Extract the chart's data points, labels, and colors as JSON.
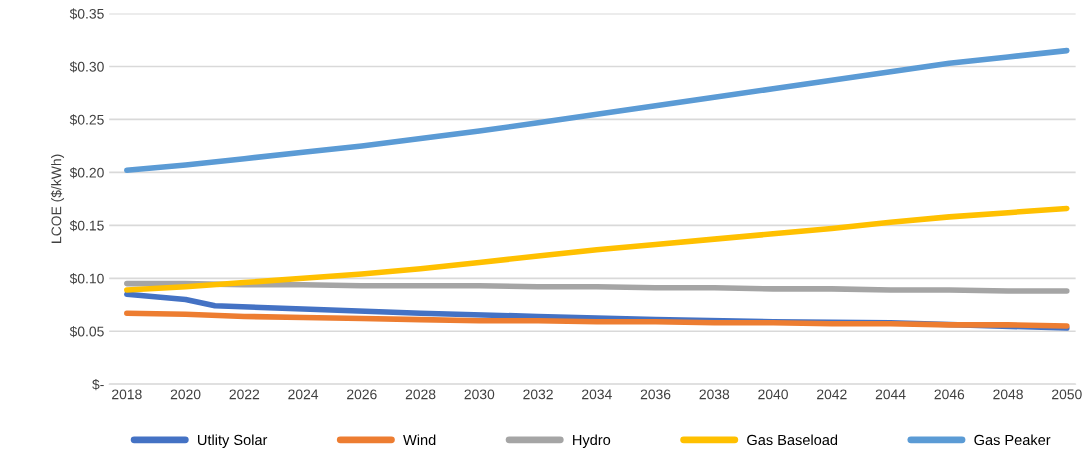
{
  "chart_data": {
    "type": "line",
    "ylabel": "LCOE ($/kWh)",
    "x": [
      2018,
      2020,
      2022,
      2024,
      2026,
      2028,
      2030,
      2032,
      2034,
      2036,
      2038,
      2040,
      2042,
      2044,
      2046,
      2048,
      2050
    ],
    "series": [
      {
        "name": "Utlity Solar",
        "color": "#4472c4",
        "x": [
          2018,
          2020,
          2021,
          2024,
          2028,
          2032,
          2036,
          2040,
          2044,
          2050
        ],
        "values": [
          0.085,
          0.08,
          0.074,
          0.071,
          0.067,
          0.064,
          0.061,
          0.059,
          0.058,
          0.053
        ]
      },
      {
        "name": "Wind",
        "color": "#ed7d31",
        "values": [
          0.067,
          0.066,
          0.064,
          0.063,
          0.062,
          0.061,
          0.06,
          0.06,
          0.059,
          0.059,
          0.058,
          0.058,
          0.057,
          0.057,
          0.056,
          0.056,
          0.055
        ]
      },
      {
        "name": "Hydro",
        "color": "#a5a5a5",
        "values": [
          0.095,
          0.095,
          0.094,
          0.094,
          0.093,
          0.093,
          0.093,
          0.092,
          0.092,
          0.091,
          0.091,
          0.09,
          0.09,
          0.089,
          0.089,
          0.088,
          0.088
        ]
      },
      {
        "name": "Gas Baseload",
        "color": "#ffc000",
        "values": [
          0.089,
          0.092,
          0.096,
          0.1,
          0.104,
          0.109,
          0.115,
          0.121,
          0.127,
          0.132,
          0.137,
          0.142,
          0.147,
          0.153,
          0.158,
          0.162,
          0.166
        ]
      },
      {
        "name": "Gas Peaker",
        "color": "#5b9bd5",
        "values": [
          0.202,
          0.207,
          0.213,
          0.219,
          0.225,
          0.232,
          0.239,
          0.247,
          0.255,
          0.263,
          0.271,
          0.279,
          0.287,
          0.295,
          0.303,
          0.309,
          0.315
        ]
      }
    ],
    "xlim": [
      2017.4,
      2050.3
    ],
    "xticks": [
      2018,
      2020,
      2022,
      2024,
      2026,
      2028,
      2030,
      2032,
      2034,
      2036,
      2038,
      2040,
      2042,
      2044,
      2046,
      2048,
      2050
    ],
    "ylim": [
      0,
      0.35
    ],
    "yticks": [
      {
        "value": 0,
        "label": "$-"
      },
      {
        "value": 0.05,
        "label": "$0.05"
      },
      {
        "value": 0.1,
        "label": "$0.10"
      },
      {
        "value": 0.15,
        "label": "$0.15"
      },
      {
        "value": 0.2,
        "label": "$0.20"
      },
      {
        "value": 0.25,
        "label": "$0.25"
      },
      {
        "value": 0.3,
        "label": "$0.30"
      },
      {
        "value": 0.35,
        "label": "$0.35"
      }
    ],
    "grid": "y",
    "legend": "bottom",
    "marker": "none",
    "line_style": "solid"
  }
}
